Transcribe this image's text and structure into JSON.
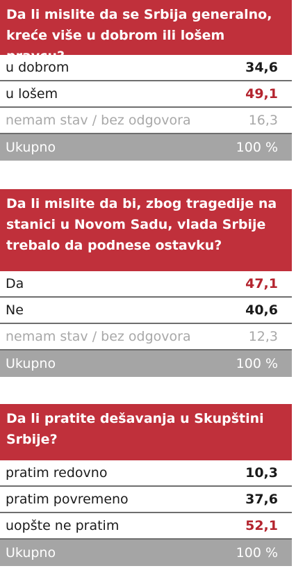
{
  "chart_data": [
    {
      "type": "table",
      "title": "Da li mislite da se Srbija generalno, kreće više u dobrom ili lošem pravcu?",
      "rows": [
        {
          "label": "u dobrom",
          "value": "34,6"
        },
        {
          "label": "u lošem",
          "value": "49,1"
        },
        {
          "label": "nemam stav / bez odgovora",
          "value": "16,3"
        },
        {
          "label": "Ukupno",
          "value": "100 %"
        }
      ]
    },
    {
      "type": "table",
      "title": "Da li mislite da bi, zbog tragedije na stanici u Novom Sadu, vlada Srbije trebalo da podnese ostavku?",
      "rows": [
        {
          "label": "Da",
          "value": "47,1"
        },
        {
          "label": "Ne",
          "value": "40,6"
        },
        {
          "label": "nemam stav / bez odgovora",
          "value": "12,3"
        },
        {
          "label": "Ukupno",
          "value": "100 %"
        }
      ]
    },
    {
      "type": "table",
      "title": "Da li pratite dešavanja u Skupštini Srbije?",
      "rows": [
        {
          "label": "pratim redovno",
          "value": "10,3"
        },
        {
          "label": "pratim povremeno",
          "value": "37,6"
        },
        {
          "label": "uopšte ne pratim",
          "value": "52,1"
        },
        {
          "label": "Ukupno",
          "value": "100 %"
        }
      ]
    }
  ],
  "colors": {
    "header_red": "#c0303b",
    "highlight_red": "#b4242e",
    "total_gray": "#a5a5a5",
    "muted_text": "#a8a8a8"
  }
}
